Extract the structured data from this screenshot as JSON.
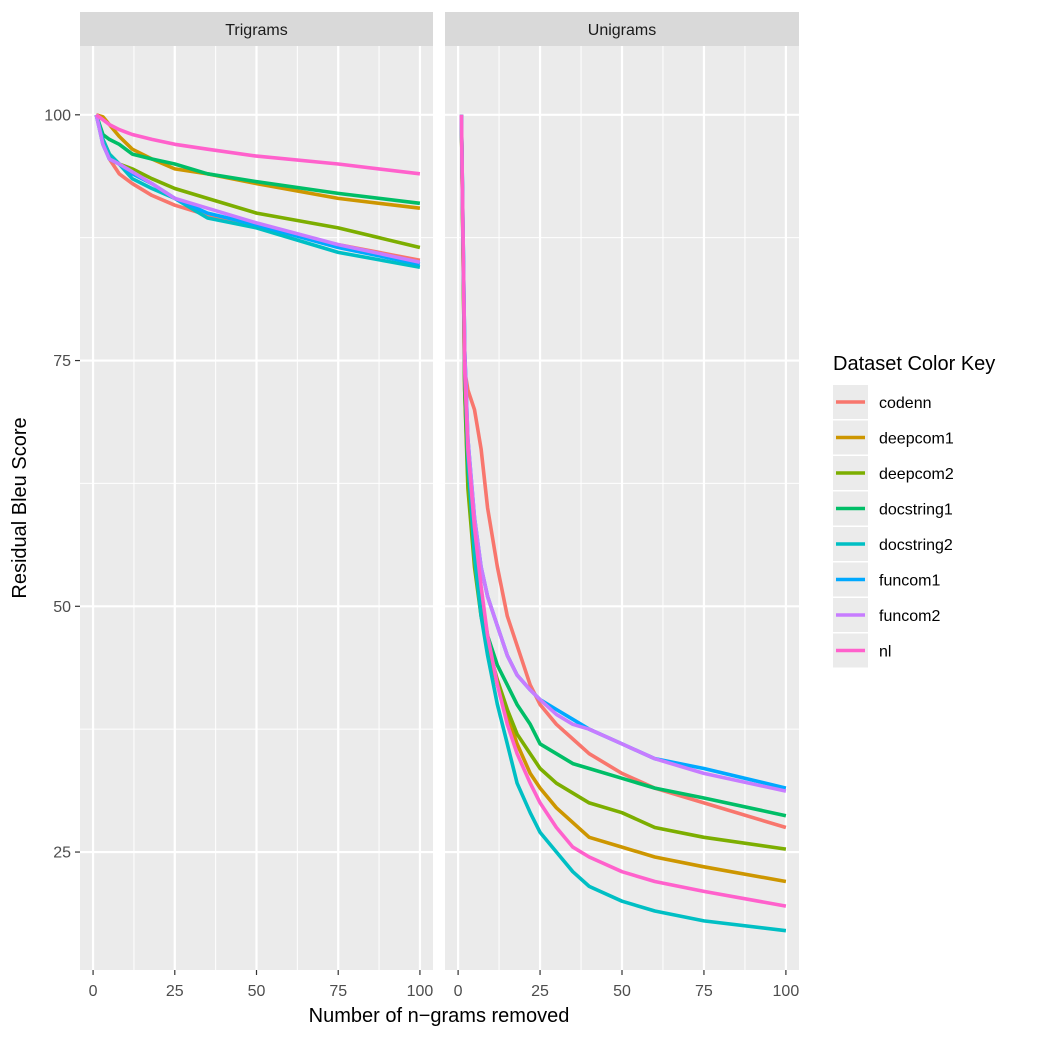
{
  "chart_data": {
    "type": "line",
    "xlabel": "Number of n−grams removed",
    "ylabel": "Residual Bleu Score",
    "xlim": [
      -4,
      104
    ],
    "ylim": [
      13,
      107
    ],
    "xticks": [
      0,
      25,
      50,
      75,
      100
    ],
    "yticks": [
      25,
      50,
      75,
      100
    ],
    "xtick_labels": [
      "0",
      "25",
      "50",
      "75",
      "100"
    ],
    "ytick_labels": [
      "25",
      "50",
      "75",
      "100"
    ],
    "legend": {
      "title": "Dataset Color Key",
      "position": "right"
    },
    "series_styles": [
      {
        "name": "codenn",
        "color": "#F8766D"
      },
      {
        "name": "deepcom1",
        "color": "#CD9600"
      },
      {
        "name": "deepcom2",
        "color": "#7CAE00"
      },
      {
        "name": "docstring1",
        "color": "#00BE67"
      },
      {
        "name": "docstring2",
        "color": "#00BFC4"
      },
      {
        "name": "funcom1",
        "color": "#00A9FF"
      },
      {
        "name": "funcom2",
        "color": "#C77CFF"
      },
      {
        "name": "nl",
        "color": "#FF61CC"
      }
    ],
    "panels": [
      {
        "title": "Trigrams",
        "series": [
          {
            "name": "codenn",
            "x": [
              1,
              3,
              5,
              8,
              12,
              18,
              25,
              35,
              50,
              75,
              100
            ],
            "y": [
              100,
              97.5,
              95.5,
              94,
              93,
              91.8,
              90.8,
              89.8,
              88.6,
              86.8,
              85.2
            ]
          },
          {
            "name": "deepcom1",
            "x": [
              1,
              3,
              5,
              8,
              12,
              18,
              25,
              35,
              50,
              75,
              100
            ],
            "y": [
              100,
              99.8,
              99,
              97.8,
              96.5,
              95.5,
              94.5,
              94,
              93,
              91.5,
              90.5
            ]
          },
          {
            "name": "deepcom2",
            "x": [
              1,
              3,
              5,
              8,
              12,
              18,
              25,
              35,
              50,
              75,
              100
            ],
            "y": [
              100,
              97.5,
              96,
              95,
              94.5,
              93.5,
              92.5,
              91.5,
              90,
              88.5,
              86.5
            ]
          },
          {
            "name": "docstring1",
            "x": [
              1,
              3,
              5,
              8,
              12,
              18,
              25,
              35,
              50,
              75,
              100
            ],
            "y": [
              100,
              98,
              97.5,
              97,
              96,
              95.5,
              95,
              94,
              93.2,
              92,
              91
            ]
          },
          {
            "name": "docstring2",
            "x": [
              1,
              3,
              5,
              8,
              12,
              18,
              25,
              35,
              50,
              75,
              100
            ],
            "y": [
              100,
              97.5,
              96,
              95,
              93.5,
              92.5,
              91.5,
              89.5,
              88.5,
              86,
              84.5
            ]
          },
          {
            "name": "funcom1",
            "x": [
              1,
              3,
              5,
              8,
              12,
              18,
              25,
              35,
              50,
              75,
              100
            ],
            "y": [
              100,
              97,
              95.5,
              95,
              94,
              93,
              91.5,
              90,
              88.8,
              86.5,
              84.8
            ]
          },
          {
            "name": "funcom2",
            "x": [
              1,
              3,
              5,
              8,
              12,
              18,
              25,
              35,
              50,
              75,
              100
            ],
            "y": [
              100,
              97,
              95.5,
              95,
              94.2,
              93,
              91.5,
              90.5,
              89,
              86.8,
              85
            ]
          },
          {
            "name": "nl",
            "x": [
              1,
              3,
              5,
              8,
              12,
              18,
              25,
              35,
              50,
              75,
              100
            ],
            "y": [
              100,
              99.5,
              99,
              98.5,
              98,
              97.5,
              97,
              96.5,
              95.8,
              95,
              94
            ]
          }
        ]
      },
      {
        "title": "Unigrams",
        "series": [
          {
            "name": "codenn",
            "x": [
              1,
              2,
              3,
              5,
              7,
              9,
              12,
              15,
              18,
              22,
              25,
              30,
              35,
              40,
              50,
              60,
              75,
              100
            ],
            "y": [
              100,
              74,
              72,
              70,
              66,
              60,
              54,
              49,
              46,
              42,
              40,
              38,
              36.5,
              35,
              33,
              31.5,
              30,
              27.5
            ]
          },
          {
            "name": "deepcom1",
            "x": [
              1,
              2,
              3,
              5,
              7,
              9,
              12,
              15,
              18,
              22,
              25,
              30,
              35,
              40,
              50,
              60,
              75,
              100
            ],
            "y": [
              100,
              72,
              63,
              55,
              50,
              46,
              42,
              39,
              36,
              33,
              31.5,
              29.5,
              28,
              26.5,
              25.5,
              24.5,
              23.5,
              22
            ]
          },
          {
            "name": "deepcom2",
            "x": [
              1,
              2,
              3,
              5,
              7,
              9,
              12,
              15,
              18,
              22,
              25,
              30,
              35,
              40,
              50,
              60,
              75,
              100
            ],
            "y": [
              100,
              72,
              62,
              54,
              49,
              46,
              42.5,
              39.5,
              37,
              35,
              33.5,
              32,
              31,
              30,
              29,
              27.5,
              26.5,
              25.3
            ]
          },
          {
            "name": "docstring1",
            "x": [
              1,
              2,
              3,
              5,
              7,
              9,
              12,
              15,
              18,
              22,
              25,
              30,
              35,
              40,
              50,
              60,
              75,
              100
            ],
            "y": [
              100,
              73,
              64,
              57,
              51,
              47,
              44,
              42,
              40,
              38,
              36,
              35,
              34,
              33.5,
              32.5,
              31.5,
              30.5,
              28.7
            ]
          },
          {
            "name": "docstring2",
            "x": [
              1,
              2,
              3,
              5,
              7,
              9,
              12,
              15,
              18,
              22,
              25,
              30,
              35,
              40,
              50,
              60,
              75,
              100
            ],
            "y": [
              100,
              76,
              65,
              55,
              49,
              45,
              40,
              36,
              32,
              29,
              27,
              25,
              23,
              21.5,
              20,
              19,
              18,
              17
            ]
          },
          {
            "name": "funcom1",
            "x": [
              1,
              2,
              3,
              5,
              7,
              9,
              12,
              15,
              18,
              22,
              25,
              30,
              35,
              40,
              50,
              60,
              75,
              100
            ],
            "y": [
              100,
              76,
              67,
              59,
              54,
              51,
              48,
              45,
              43,
              41.5,
              40.5,
              39.5,
              38.5,
              37.5,
              36,
              34.5,
              33.5,
              31.5
            ]
          },
          {
            "name": "funcom2",
            "x": [
              1,
              2,
              3,
              5,
              7,
              9,
              12,
              15,
              18,
              22,
              25,
              30,
              35,
              40,
              50,
              60,
              75,
              100
            ],
            "y": [
              100,
              76,
              67,
              59,
              54,
              51,
              48,
              45,
              43,
              41.5,
              40.5,
              39,
              38,
              37.5,
              36,
              34.5,
              33,
              31.2
            ]
          },
          {
            "name": "nl",
            "x": [
              1,
              2,
              3,
              5,
              7,
              9,
              12,
              15,
              18,
              22,
              25,
              30,
              35,
              40,
              50,
              60,
              75,
              100
            ],
            "y": [
              100,
              74,
              66,
              58,
              52,
              47,
              42,
              38,
              35,
              32,
              30,
              27.5,
              25.5,
              24.5,
              23,
              22,
              21,
              19.5
            ]
          }
        ]
      }
    ]
  }
}
